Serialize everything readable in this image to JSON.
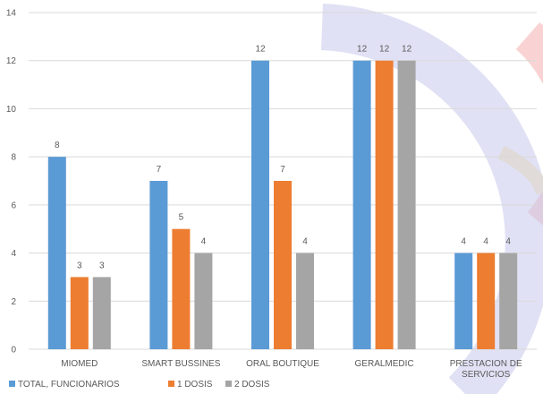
{
  "chart_data": {
    "type": "bar",
    "categories": [
      "MIOMED",
      "SMART BUSSINES",
      "ORAL BOUTIQUE",
      "GERALMEDIC",
      "PRESTACION DE SERVICIOS"
    ],
    "category_lines": [
      [
        "MIOMED"
      ],
      [
        "SMART BUSSINES"
      ],
      [
        "ORAL BOUTIQUE"
      ],
      [
        "GERALMEDIC"
      ],
      [
        "PRESTACION DE",
        "SERVICIOS"
      ]
    ],
    "series": [
      {
        "name": "TOTAL, FUNCIONARIOS",
        "values": [
          8,
          7,
          12,
          12,
          4
        ],
        "color": "#5B9BD5"
      },
      {
        "name": "1 DOSIS",
        "values": [
          3,
          5,
          7,
          12,
          4
        ],
        "color": "#ED7D31"
      },
      {
        "name": "2 DOSIS",
        "values": [
          3,
          4,
          4,
          12,
          4
        ],
        "color": "#A5A5A5"
      }
    ],
    "ylim": [
      0,
      14
    ],
    "yticks": [
      0,
      2,
      4,
      6,
      8,
      10,
      12,
      14
    ],
    "grid": true,
    "legend_position": "bottom-left",
    "data_labels": true,
    "title": "",
    "xlabel": "",
    "ylabel": ""
  },
  "watermark": {
    "colors": [
      "#c8c8ec",
      "#f7c8c8",
      "#fdf1b8"
    ]
  }
}
